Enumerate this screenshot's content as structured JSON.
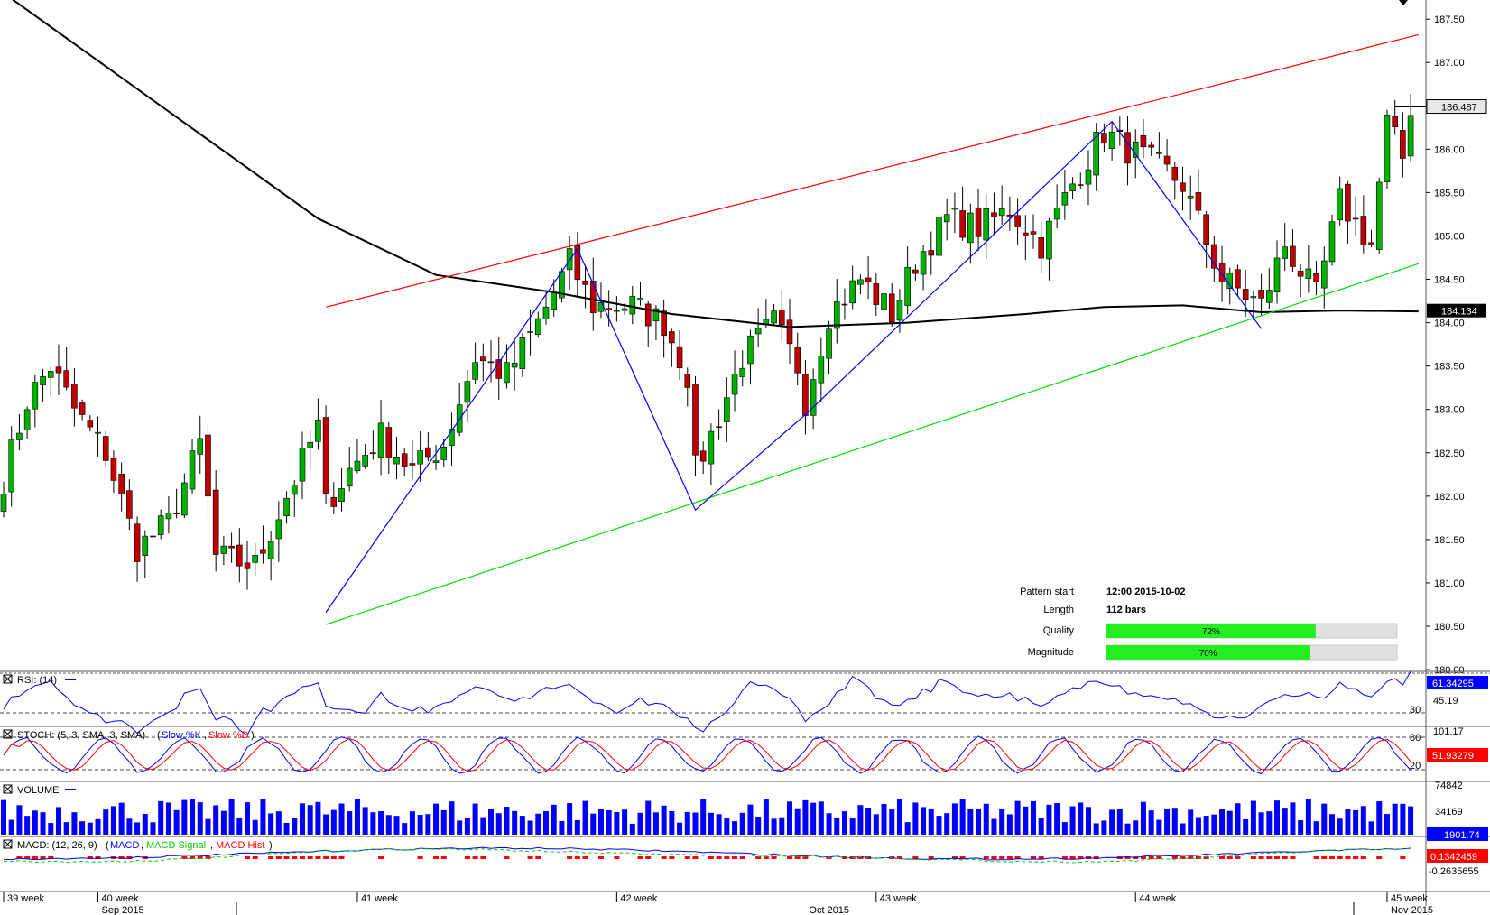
{
  "chart_data": [
    {
      "type": "candlestick",
      "title": "",
      "price_axis": {
        "labels": [
          "187.50",
          "187.00",
          "186.50",
          "186.00",
          "185.50",
          "185.00",
          "184.50",
          "184.00",
          "183.50",
          "183.00",
          "182.50",
          "182.00",
          "181.50",
          "181.00",
          "180.50",
          "180.00"
        ],
        "ylim": [
          179.98,
          187.72
        ]
      },
      "current_price_label": "186.487",
      "current_price": 186.487,
      "ma_label": "184.134",
      "ma_value": 184.134,
      "grid": false,
      "candles_count": 180,
      "overlays": {
        "upper_channel_color": "#ff0000",
        "lower_channel_color": "#00dd00",
        "zigzag_color": "#0000ff",
        "ma_color": "#000000",
        "zigzag_points": [
          [
            41,
            180.66
          ],
          [
            73,
            184.85
          ],
          [
            88,
            181.84
          ],
          [
            102,
            182.94
          ],
          [
            141,
            186.32
          ],
          [
            160,
            183.93
          ]
        ],
        "upper_channel": [
          [
            41,
            184.18
          ],
          [
            180,
            187.32
          ]
        ],
        "lower_channel": [
          [
            41,
            180.52
          ],
          [
            180,
            184.68
          ]
        ]
      },
      "colors": {
        "up": "#00b000",
        "down": "#c00000"
      }
    },
    {
      "type": "line",
      "name": "rsi",
      "title": "RSI: (14)",
      "ylabel_levels": [
        "45.19",
        "30"
      ],
      "current_label": "61.34295",
      "series_color": "#0000ff"
    },
    {
      "type": "line",
      "name": "stoch",
      "title": "STOCH: (5, 3, SMA, 3, SMA)",
      "legend": [
        {
          "label": "Slow %K",
          "color": "#0000ff"
        },
        {
          "label": "Slow %D",
          "color": "#ff0000"
        }
      ],
      "levels": [
        "101.17",
        "80",
        "20"
      ],
      "current_label": "51.93279"
    },
    {
      "type": "bar",
      "name": "volume",
      "title": "VOLUME",
      "axis_labels": [
        "74842",
        "34169"
      ],
      "current_label": "1901.74",
      "bar_color": "#0000ff"
    },
    {
      "type": "bar",
      "name": "macd",
      "title": "MACD: (12, 26, 9)",
      "legend": [
        {
          "label": "MACD",
          "color": "#0000ff"
        },
        {
          "label": "MACD Signal",
          "color": "#00cc00"
        },
        {
          "label": "MACD Hist",
          "color": "#ff0000"
        }
      ],
      "current_label": "0.1342459",
      "axis_label": "-0.2635655"
    }
  ],
  "time_axis": {
    "week_labels": [
      {
        "text": "39 week",
        "bar": 0
      },
      {
        "text": "40 week",
        "bar": 12
      },
      {
        "text": "41 week",
        "bar": 45
      },
      {
        "text": "42 week",
        "bar": 78
      },
      {
        "text": "43 week",
        "bar": 111
      },
      {
        "text": "44 week",
        "bar": 144
      },
      {
        "text": "45 week",
        "bar": 176
      }
    ],
    "month_labels": [
      {
        "text": "Sep 2015",
        "bar": 12
      },
      {
        "text": "Oct 2015",
        "bar": 102
      },
      {
        "text": "Nov 2015",
        "bar": 176
      }
    ]
  },
  "pattern_info": {
    "start_label": "Pattern start",
    "start_value": "12:00 2015-10-02",
    "length_label": "Length",
    "length_value": "112 bars",
    "quality_label": "Quality",
    "quality_value": "72%",
    "quality_fraction": 0.72,
    "magnitude_label": "Magnitude",
    "magnitude_value": "70%",
    "magnitude_fraction": 0.7
  }
}
